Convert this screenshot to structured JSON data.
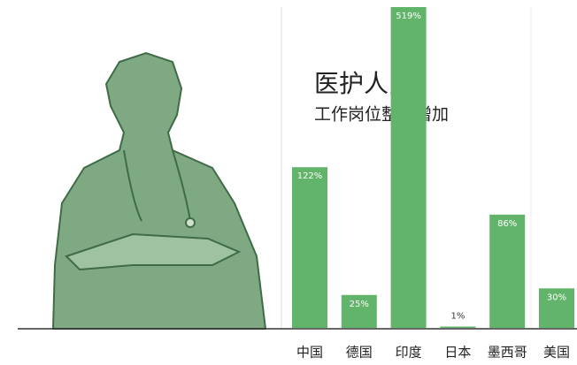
{
  "chart_data": {
    "type": "bar",
    "title": "医护人员:",
    "subtitle": "工作岗位整体增加",
    "categories": [
      "中国",
      "德国",
      "印度",
      "日本",
      "墨西哥",
      "美国"
    ],
    "values": [
      122,
      25,
      519,
      1,
      86,
      30
    ],
    "value_labels": [
      "122%",
      "25%",
      "519%",
      "1%",
      "86%",
      "30%"
    ],
    "color": "#62b46b"
  }
}
